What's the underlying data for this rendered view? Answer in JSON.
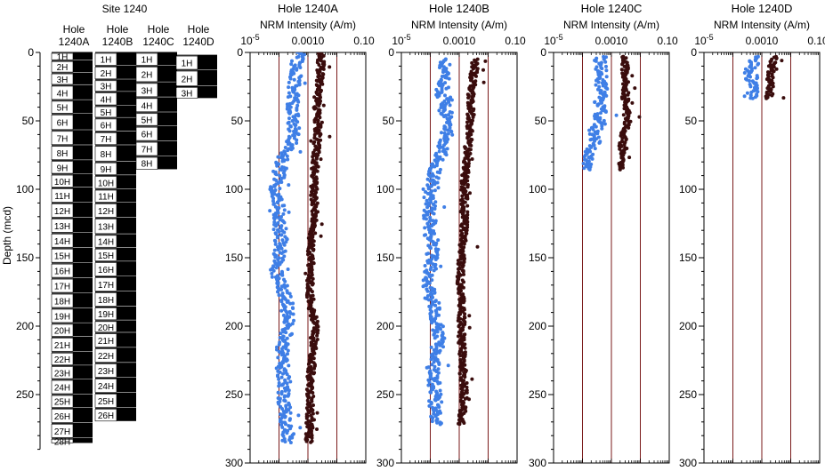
{
  "colors": {
    "dark_series": "#3a0d0d",
    "light_series": "#3f7fe6",
    "axis": "#000000",
    "frame_line": "#7a1a1a"
  },
  "core_panel": {
    "site_title": "Site 1240",
    "ylabel": "Depth (mcd)",
    "depth_ticks": [
      "0",
      "50",
      "100",
      "150",
      "200",
      "250"
    ],
    "depth_range": [
      0,
      300
    ],
    "holes": [
      {
        "label1": "Hole",
        "label2": "1240A",
        "cores": [
          [
            "1H",
            0,
            6
          ],
          [
            "2H",
            6,
            15
          ],
          [
            "3H",
            15,
            24
          ],
          [
            "4H",
            24,
            35
          ],
          [
            "5H",
            35,
            45
          ],
          [
            "6H",
            45,
            57
          ],
          [
            "7H",
            57,
            68
          ],
          [
            "8H",
            68,
            79
          ],
          [
            "9H",
            79,
            89
          ],
          [
            "10H",
            89,
            99
          ],
          [
            "11H",
            99,
            110
          ],
          [
            "12H",
            110,
            121
          ],
          [
            "13H",
            121,
            132
          ],
          [
            "14H",
            132,
            143
          ],
          [
            "15H",
            143,
            154
          ],
          [
            "16H",
            154,
            165
          ],
          [
            "17H",
            165,
            176
          ],
          [
            "18H",
            176,
            187
          ],
          [
            "19H",
            187,
            198
          ],
          [
            "20H",
            198,
            208
          ],
          [
            "21H",
            208,
            219
          ],
          [
            "22H",
            219,
            229
          ],
          [
            "23H",
            229,
            239
          ],
          [
            "24H",
            239,
            250
          ],
          [
            "25H",
            250,
            260
          ],
          [
            "26H",
            260,
            271
          ],
          [
            "27H",
            271,
            282
          ],
          [
            "28H",
            282,
            286
          ]
        ]
      },
      {
        "label1": "Hole",
        "label2": "1240B",
        "cores": [
          [
            "1H",
            0,
            10
          ],
          [
            "2H",
            10,
            20
          ],
          [
            "3H",
            20,
            29
          ],
          [
            "4H",
            29,
            39
          ],
          [
            "5H",
            39,
            48
          ],
          [
            "6H",
            48,
            58
          ],
          [
            "7H",
            58,
            68
          ],
          [
            "8H",
            68,
            80
          ],
          [
            "9H",
            80,
            90
          ],
          [
            "10H",
            90,
            100
          ],
          [
            "11H",
            100,
            110
          ],
          [
            "12H",
            110,
            121
          ],
          [
            "13H",
            121,
            133
          ],
          [
            "14H",
            133,
            143
          ],
          [
            "15H",
            143,
            153
          ],
          [
            "16H",
            153,
            164
          ],
          [
            "17H",
            164,
            175
          ],
          [
            "18H",
            175,
            186
          ],
          [
            "19H",
            186,
            196
          ],
          [
            "20H",
            196,
            205
          ],
          [
            "21H",
            205,
            216
          ],
          [
            "22H",
            216,
            227
          ],
          [
            "23H",
            227,
            238
          ],
          [
            "24H",
            238,
            249
          ],
          [
            "25H",
            249,
            260
          ],
          [
            "26H",
            260,
            270
          ]
        ]
      },
      {
        "label1": "Hole",
        "label2": "1240C",
        "cores": [
          [
            "1H",
            0,
            10
          ],
          [
            "2H",
            10,
            22
          ],
          [
            "3H",
            22,
            33
          ],
          [
            "4H",
            33,
            44
          ],
          [
            "5H",
            44,
            54
          ],
          [
            "6H",
            54,
            65
          ],
          [
            "7H",
            65,
            76
          ],
          [
            "8H",
            76,
            86
          ]
        ]
      },
      {
        "label1": "Hole",
        "label2": "1240D",
        "cores": [
          [
            "1H",
            2,
            13
          ],
          [
            "2H",
            13,
            25
          ],
          [
            "3H",
            25,
            34
          ]
        ]
      }
    ]
  },
  "panels": [
    {
      "title": "Hole 1240A",
      "xlabel": "NRM Intensity (A/m)"
    },
    {
      "title": "Hole 1240B",
      "xlabel": "NRM Intensity (A/m)"
    },
    {
      "title": "Hole 1240C",
      "xlabel": "NRM Intensity (A/m)"
    },
    {
      "title": "Hole 1240D",
      "xlabel": "NRM Intensity (A/m)"
    }
  ],
  "chart_data": [
    {
      "type": "scatter",
      "title": "Hole 1240A",
      "xlabel": "NRM Intensity (A/m)",
      "ylabel": "",
      "xscale": "log",
      "xlim": [
        1e-05,
        0.1
      ],
      "ylim": [
        300,
        0
      ],
      "xticks": [
        "10",
        "0.0010",
        "0.10"
      ],
      "xtick_exponent": "-5",
      "yticks": [
        "0",
        "50",
        "100",
        "150",
        "200",
        "250",
        "300"
      ],
      "series": [
        {
          "color": "#3a0d0d",
          "depth_range": [
            0,
            285
          ],
          "depth": [
            0,
            20,
            40,
            60,
            80,
            100,
            120,
            140,
            160,
            180,
            200,
            220,
            240,
            260,
            280
          ],
          "intensity": [
            0.003,
            0.0025,
            0.002,
            0.0022,
            0.0018,
            0.0016,
            0.0017,
            0.0013,
            0.0012,
            0.0012,
            0.0018,
            0.0015,
            0.0012,
            0.0012,
            0.0011
          ]
        },
        {
          "color": "#3f7fe6",
          "depth_range": [
            0,
            285
          ],
          "depth": [
            0,
            20,
            40,
            60,
            80,
            100,
            120,
            140,
            160,
            180,
            200,
            220,
            240,
            260,
            280
          ],
          "intensity": [
            0.0005,
            0.00035,
            0.0003,
            0.00035,
            0.00012,
            8e-05,
            0.0001,
            0.00012,
            8e-05,
            0.00018,
            0.00022,
            0.00012,
            0.00015,
            0.00015,
            0.0002
          ]
        }
      ]
    },
    {
      "type": "scatter",
      "title": "Hole 1240B",
      "xlabel": "NRM Intensity (A/m)",
      "ylabel": "",
      "xscale": "log",
      "xlim": [
        1e-05,
        0.1
      ],
      "ylim": [
        300,
        0
      ],
      "xticks": [
        "10",
        "0.0010",
        "0.10"
      ],
      "xtick_exponent": "-5",
      "yticks": [
        "0",
        "50",
        "100",
        "150",
        "200",
        "250",
        "300"
      ],
      "series": [
        {
          "color": "#3a0d0d",
          "depth_range": [
            5,
            272
          ],
          "depth": [
            10,
            30,
            50,
            70,
            90,
            110,
            130,
            150,
            170,
            190,
            210,
            230,
            250,
            270
          ],
          "intensity": [
            0.0035,
            0.0025,
            0.0025,
            0.002,
            0.0016,
            0.0015,
            0.0015,
            0.0012,
            0.0011,
            0.0012,
            0.0012,
            0.0013,
            0.0015,
            0.0012
          ]
        },
        {
          "color": "#3f7fe6",
          "depth_range": [
            5,
            272
          ],
          "depth": [
            10,
            30,
            50,
            70,
            90,
            110,
            130,
            150,
            170,
            190,
            210,
            230,
            250,
            270
          ],
          "intensity": [
            0.0003,
            0.00025,
            0.0004,
            0.0003,
            0.00012,
            9e-05,
            0.0001,
            0.00012,
            8e-05,
            0.00015,
            0.0002,
            0.00012,
            0.00015,
            0.00015
          ]
        }
      ]
    },
    {
      "type": "scatter",
      "title": "Hole 1240C",
      "xlabel": "NRM Intensity (A/m)",
      "ylabel": "",
      "xscale": "log",
      "xlim": [
        1e-05,
        0.1
      ],
      "ylim": [
        300,
        0
      ],
      "xticks": [
        "10",
        "0.0010",
        "0.10"
      ],
      "xtick_exponent": "-5",
      "yticks": [
        "0",
        "50",
        "100",
        "150",
        "200",
        "250",
        "300"
      ],
      "series": [
        {
          "color": "#3a0d0d",
          "depth_range": [
            3,
            86
          ],
          "depth": [
            5,
            20,
            35,
            50,
            65,
            80
          ],
          "intensity": [
            0.003,
            0.003,
            0.003,
            0.0035,
            0.0025,
            0.002
          ]
        },
        {
          "color": "#3f7fe6",
          "depth_range": [
            3,
            86
          ],
          "depth": [
            5,
            20,
            35,
            50,
            65,
            80
          ],
          "intensity": [
            0.0004,
            0.0005,
            0.0004,
            0.0004,
            0.00025,
            0.00015
          ]
        }
      ]
    },
    {
      "type": "scatter",
      "title": "Hole 1240D",
      "xlabel": "NRM Intensity (A/m)",
      "ylabel": "",
      "xscale": "log",
      "xlim": [
        1e-05,
        0.1
      ],
      "ylim": [
        300,
        0
      ],
      "xticks": [
        "10",
        "0.0010",
        "0.10"
      ],
      "xtick_exponent": "-5",
      "yticks": [
        "0",
        "50",
        "100",
        "150",
        "200",
        "250",
        "300"
      ],
      "series": [
        {
          "color": "#3a0d0d",
          "depth_range": [
            3,
            34
          ],
          "depth": [
            5,
            15,
            25,
            33
          ],
          "intensity": [
            0.0025,
            0.002,
            0.002,
            0.0018
          ]
        },
        {
          "color": "#3f7fe6",
          "depth_range": [
            3,
            34
          ],
          "depth": [
            5,
            15,
            25,
            33
          ],
          "intensity": [
            0.0006,
            0.0004,
            0.0005,
            0.0004
          ]
        }
      ]
    }
  ]
}
